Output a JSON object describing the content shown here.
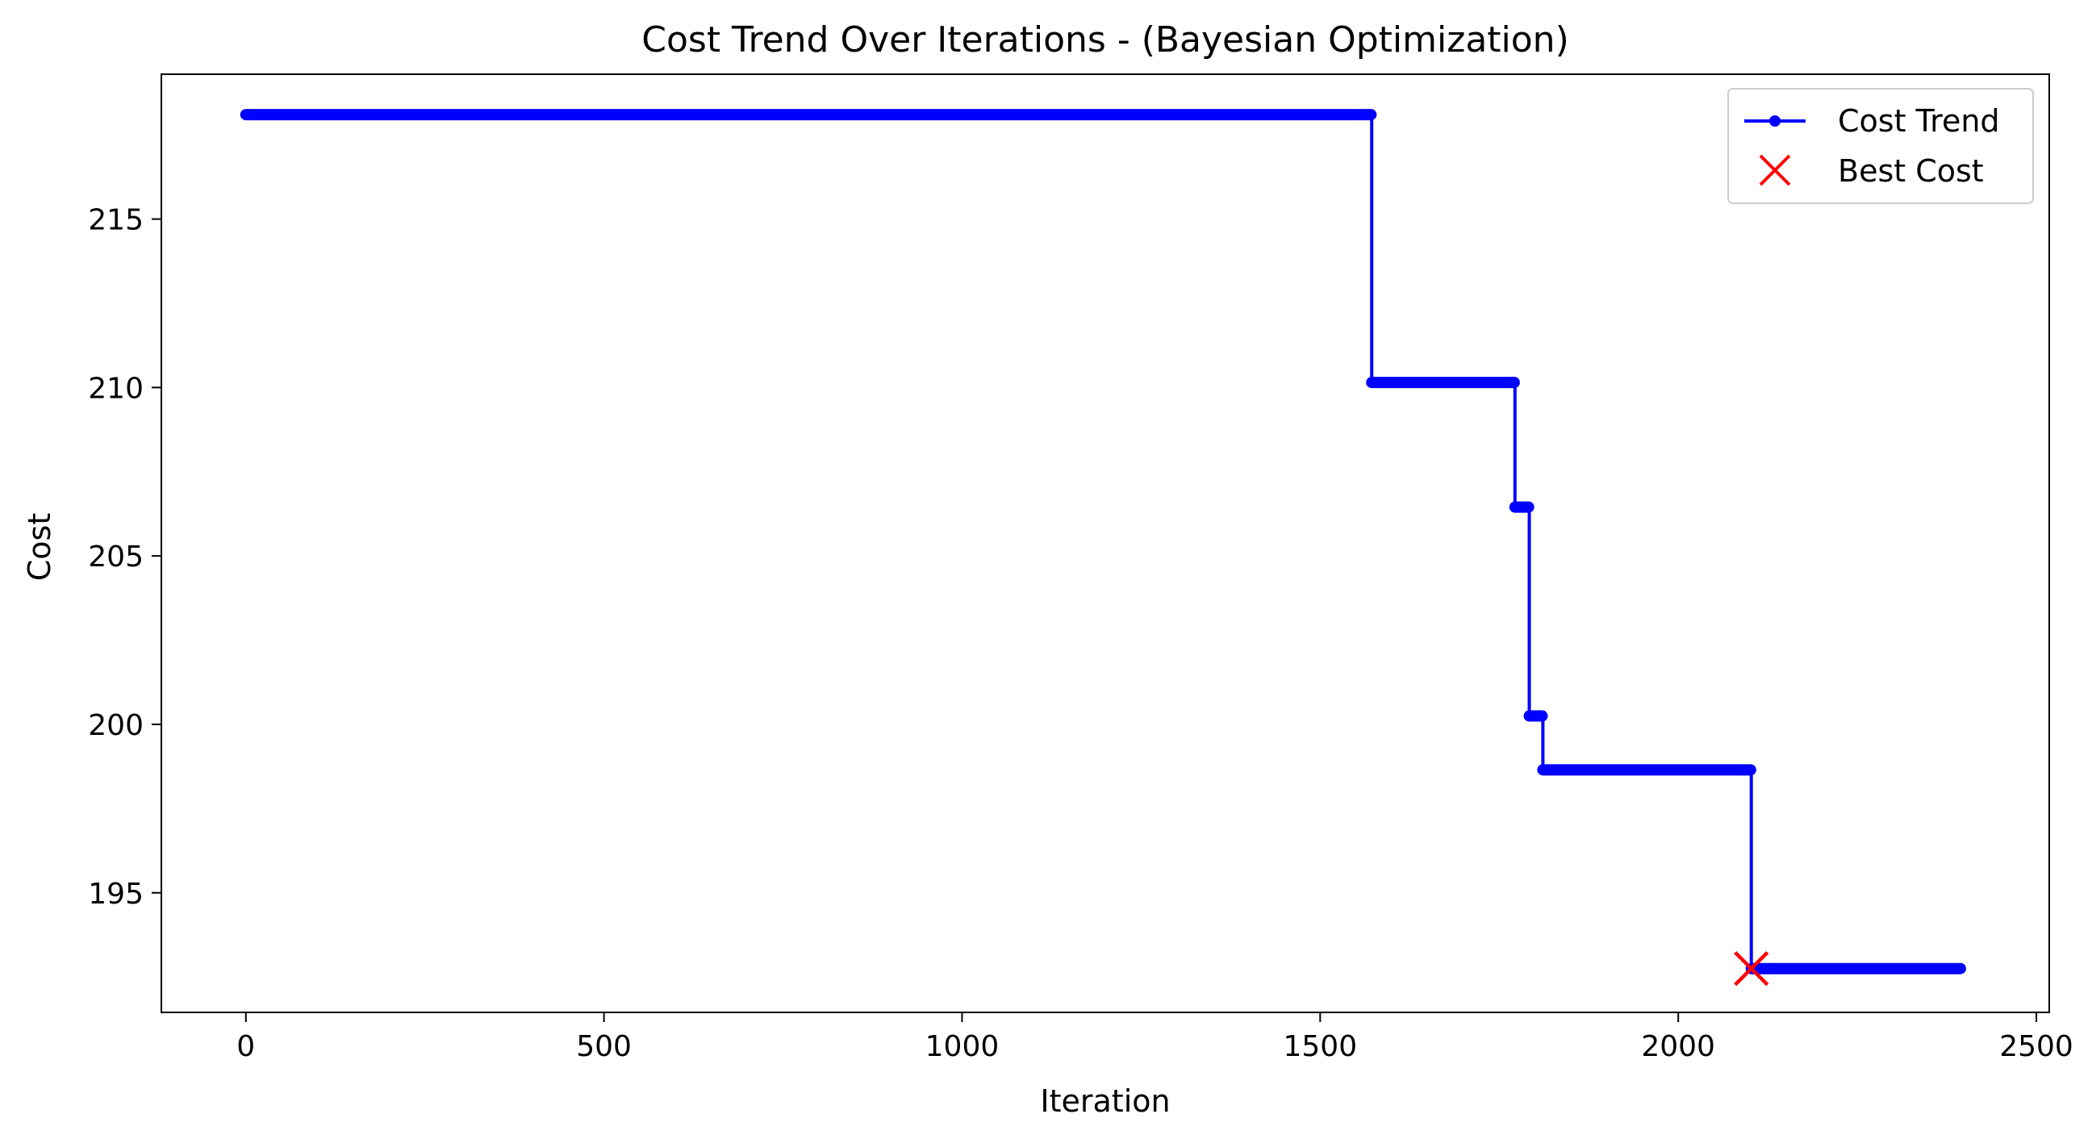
{
  "chart_data": {
    "type": "line",
    "title": "Cost Trend Over Iterations - (Bayesian Optimization)",
    "xlabel": "Iteration",
    "ylabel": "Cost",
    "xlim": [
      -118,
      2518
    ],
    "ylim": [
      191.45,
      219.3
    ],
    "xticks": [
      0,
      500,
      1000,
      1500,
      2000,
      2500
    ],
    "yticks": [
      195,
      200,
      205,
      210,
      215
    ],
    "xtick_labels": [
      "0",
      "500",
      "1000",
      "1500",
      "2000",
      "2500"
    ],
    "ytick_labels": [
      "195",
      "200",
      "205",
      "210",
      "215"
    ],
    "grid": false,
    "legend_position": "top-right",
    "colors": {
      "line": "#0000ff",
      "best_marker": "#ff0000",
      "axes": "#000000",
      "legend_border": "#cccccc"
    },
    "series": [
      {
        "name": "Cost Trend",
        "style": "line-with-dot-markers",
        "steps": [
          {
            "from": 0,
            "to": 1571,
            "y": 218.1
          },
          {
            "from": 1572,
            "to": 1771,
            "y": 210.15
          },
          {
            "from": 1772,
            "to": 1791,
            "y": 206.45
          },
          {
            "from": 1792,
            "to": 1810,
            "y": 200.25
          },
          {
            "from": 1811,
            "to": 2101,
            "y": 198.65
          },
          {
            "from": 2102,
            "to": 2394,
            "y": 192.75
          }
        ]
      },
      {
        "name": "Best Cost",
        "style": "x-marker",
        "points": [
          {
            "x": 2102,
            "y": 192.75
          }
        ]
      }
    ]
  }
}
